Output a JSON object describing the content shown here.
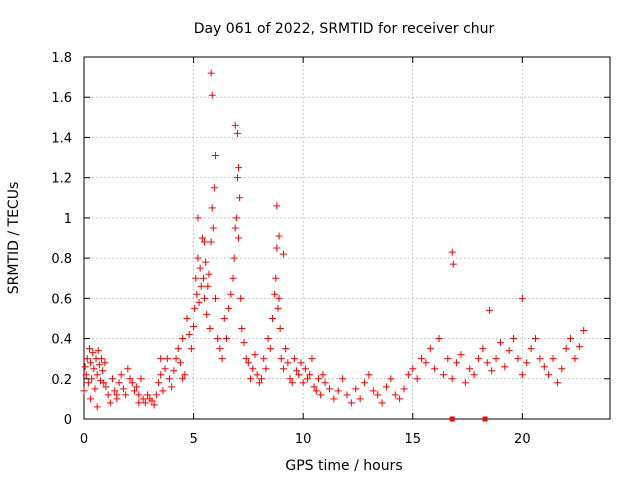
{
  "chart_data": {
    "type": "scatter",
    "title": "Day 061 of 2022, SRMTID for receiver chur",
    "xlabel": "GPS time / hours",
    "ylabel": "SRMTID / TECUs",
    "xlim": [
      0,
      24
    ],
    "ylim": [
      0,
      1.8
    ],
    "xticks": [
      0,
      5,
      10,
      15,
      20
    ],
    "xtick_labels": [
      "0",
      "5",
      "10",
      "15",
      "20"
    ],
    "yticks": [
      0,
      0.2,
      0.4,
      0.6,
      0.8,
      1,
      1.2,
      1.4,
      1.6,
      1.8
    ],
    "ytick_labels": [
      "0",
      "0.2",
      "0.4",
      "0.6",
      "0.8",
      "1",
      "1.2",
      "1.4",
      "1.6",
      "1.8"
    ],
    "grid": true,
    "marker": "plus",
    "color": "#ff0000",
    "series": [
      {
        "name": "SRMTID",
        "x": [
          0.0,
          0.05,
          0.1,
          0.15,
          0.2,
          0.25,
          0.3,
          0.35,
          0.4,
          0.45,
          0.5,
          0.55,
          0.6,
          0.65,
          0.7,
          0.75,
          0.8,
          0.85,
          0.9,
          0.95,
          1.0,
          1.1,
          1.2,
          1.3,
          1.4,
          1.5,
          1.6,
          1.7,
          1.8,
          1.9,
          2.0,
          2.1,
          2.2,
          2.3,
          2.4,
          2.5,
          2.6,
          2.7,
          2.8,
          2.9,
          3.0,
          3.1,
          3.2,
          3.3,
          3.4,
          3.5,
          3.6,
          3.7,
          3.8,
          3.9,
          4.0,
          4.1,
          4.2,
          4.3,
          4.4,
          4.5,
          4.6,
          4.7,
          4.8,
          4.9,
          5.0,
          5.05,
          5.1,
          5.15,
          5.2,
          5.25,
          5.3,
          5.35,
          5.4,
          5.45,
          5.5,
          5.55,
          5.6,
          5.65,
          5.7,
          5.75,
          5.8,
          5.85,
          5.9,
          5.95,
          6.0,
          6.1,
          6.2,
          6.3,
          6.4,
          6.5,
          6.6,
          6.7,
          6.8,
          6.85,
          6.9,
          6.95,
          7.0,
          7.05,
          7.1,
          7.15,
          7.2,
          7.3,
          7.4,
          7.5,
          7.6,
          7.7,
          7.8,
          7.9,
          8.0,
          8.1,
          8.2,
          8.3,
          8.4,
          8.5,
          8.6,
          8.7,
          8.75,
          8.8,
          8.85,
          8.9,
          8.95,
          9.0,
          9.1,
          9.2,
          9.3,
          9.4,
          9.5,
          9.6,
          9.7,
          9.8,
          9.9,
          10.0,
          10.1,
          10.2,
          10.3,
          10.4,
          10.5,
          10.6,
          10.7,
          10.8,
          10.9,
          11.0,
          11.2,
          11.4,
          11.6,
          11.8,
          12.0,
          12.2,
          12.4,
          12.6,
          12.8,
          13.0,
          13.2,
          13.4,
          13.6,
          13.8,
          14.0,
          14.2,
          14.4,
          14.6,
          14.8,
          15.0,
          15.2,
          15.4,
          15.6,
          15.8,
          16.0,
          16.2,
          16.4,
          16.6,
          16.8,
          17.0,
          17.2,
          17.4,
          17.6,
          17.8,
          18.0,
          18.2,
          18.4,
          18.6,
          18.8,
          19.0,
          19.2,
          19.4,
          19.6,
          19.8,
          20.0,
          20.2,
          20.4,
          20.6,
          20.8,
          21.0,
          21.2,
          21.4,
          21.6,
          21.8,
          22.0,
          22.2,
          22.4,
          22.6,
          22.8,
          0.3,
          0.6,
          1.5,
          2.5,
          3.5,
          4.5,
          5.2,
          5.5,
          5.8,
          5.85,
          6.0,
          6.9,
          7.0,
          7.05,
          8.8,
          8.9,
          9.1,
          16.8,
          16.85,
          18.5,
          20.0
        ],
        "y": [
          0.14,
          0.26,
          0.22,
          0.3,
          0.18,
          0.35,
          0.28,
          0.2,
          0.33,
          0.25,
          0.15,
          0.3,
          0.22,
          0.34,
          0.27,
          0.19,
          0.3,
          0.24,
          0.18,
          0.28,
          0.16,
          0.12,
          0.08,
          0.2,
          0.14,
          0.1,
          0.18,
          0.22,
          0.15,
          0.12,
          0.25,
          0.2,
          0.18,
          0.14,
          0.16,
          0.12,
          0.2,
          0.1,
          0.08,
          0.12,
          0.1,
          0.09,
          0.07,
          0.12,
          0.18,
          0.22,
          0.14,
          0.25,
          0.3,
          0.2,
          0.16,
          0.24,
          0.3,
          0.35,
          0.28,
          0.4,
          0.22,
          0.5,
          0.42,
          0.35,
          0.46,
          0.55,
          0.7,
          0.62,
          0.8,
          0.58,
          0.75,
          0.66,
          0.9,
          0.7,
          0.6,
          0.78,
          0.52,
          0.66,
          0.72,
          0.45,
          0.88,
          1.05,
          0.95,
          1.15,
          0.6,
          0.4,
          0.35,
          0.3,
          0.5,
          0.4,
          0.55,
          0.62,
          0.7,
          0.8,
          0.95,
          1.0,
          1.2,
          0.9,
          1.1,
          0.6,
          0.45,
          0.38,
          0.3,
          0.28,
          0.2,
          0.25,
          0.32,
          0.22,
          0.18,
          0.2,
          0.3,
          0.25,
          0.4,
          0.35,
          0.5,
          0.62,
          0.7,
          0.85,
          0.55,
          0.6,
          0.45,
          0.3,
          0.25,
          0.35,
          0.28,
          0.2,
          0.18,
          0.3,
          0.24,
          0.22,
          0.28,
          0.18,
          0.25,
          0.2,
          0.22,
          0.3,
          0.16,
          0.14,
          0.2,
          0.12,
          0.22,
          0.18,
          0.15,
          0.1,
          0.14,
          0.2,
          0.12,
          0.08,
          0.15,
          0.1,
          0.18,
          0.22,
          0.14,
          0.12,
          0.08,
          0.16,
          0.2,
          0.12,
          0.1,
          0.15,
          0.22,
          0.25,
          0.2,
          0.3,
          0.28,
          0.35,
          0.25,
          0.4,
          0.22,
          0.3,
          0.2,
          0.28,
          0.32,
          0.18,
          0.25,
          0.22,
          0.3,
          0.35,
          0.28,
          0.24,
          0.3,
          0.38,
          0.26,
          0.34,
          0.4,
          0.3,
          0.22,
          0.28,
          0.35,
          0.4,
          0.3,
          0.26,
          0.22,
          0.3,
          0.18,
          0.25,
          0.35,
          0.4,
          0.3,
          0.36,
          0.44,
          0.1,
          0.06,
          0.12,
          0.08,
          0.3,
          0.2,
          1.0,
          0.88,
          1.72,
          1.61,
          1.31,
          1.46,
          1.42,
          1.25,
          1.06,
          0.91,
          0.82,
          0.83,
          0.77,
          0.54,
          0.6
        ]
      }
    ],
    "outliers_square_marker_x": [
      16.8,
      18.3
    ],
    "outliers_square_marker_y": [
      0,
      0
    ]
  }
}
